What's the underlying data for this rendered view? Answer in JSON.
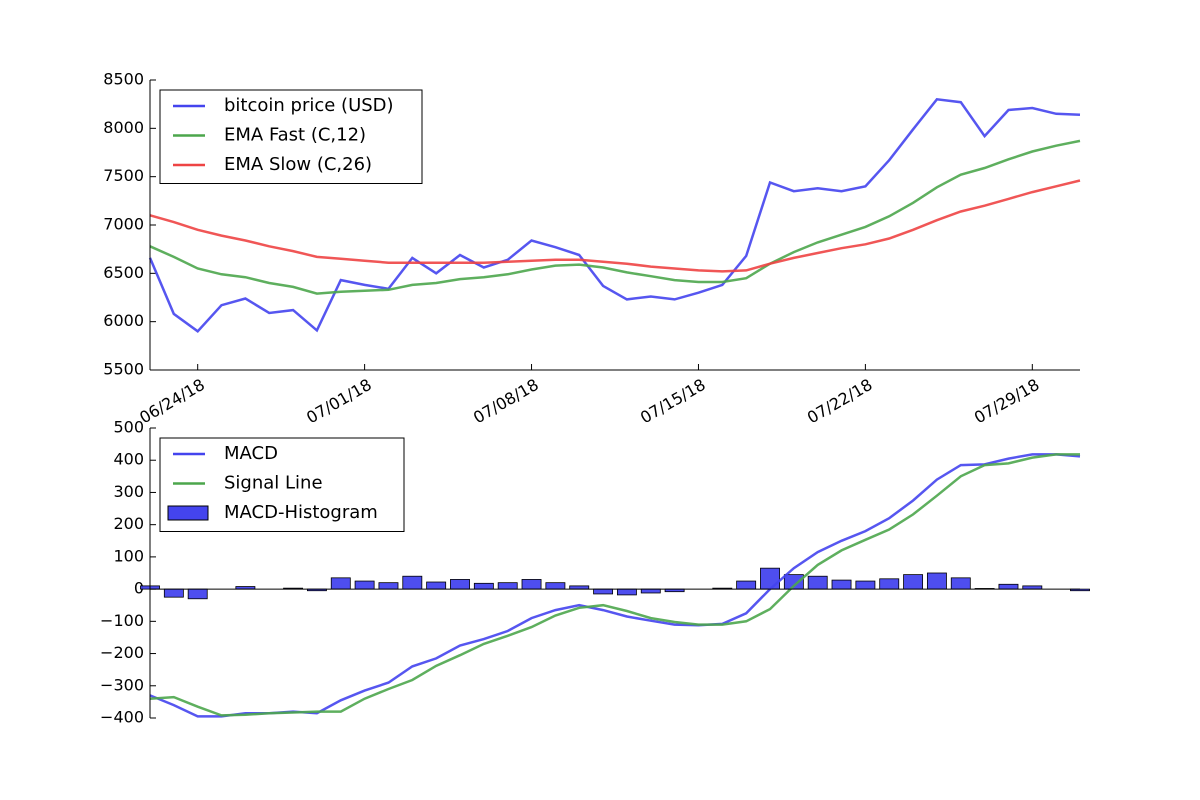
{
  "chart_data": [
    {
      "type": "line",
      "x": [
        "06/22/18",
        "06/23/18",
        "06/24/18",
        "06/25/18",
        "06/26/18",
        "06/27/18",
        "06/28/18",
        "06/29/18",
        "06/30/18",
        "07/01/18",
        "07/02/18",
        "07/03/18",
        "07/04/18",
        "07/05/18",
        "07/06/18",
        "07/07/18",
        "07/08/18",
        "07/09/18",
        "07/10/18",
        "07/11/18",
        "07/12/18",
        "07/13/18",
        "07/14/18",
        "07/15/18",
        "07/16/18",
        "07/17/18",
        "07/18/18",
        "07/19/18",
        "07/20/18",
        "07/21/18",
        "07/22/18",
        "07/23/18",
        "07/24/18",
        "07/25/18",
        "07/26/18",
        "07/27/18",
        "07/28/18",
        "07/29/18",
        "07/30/18",
        "07/31/18"
      ],
      "xlim": [
        "06/22/18",
        "07/31/18"
      ],
      "xticks": [
        "06/24/18",
        "07/01/18",
        "07/08/18",
        "07/15/18",
        "07/22/18",
        "07/29/18"
      ],
      "ylim": [
        5500,
        8500
      ],
      "yticks": [
        5500,
        6000,
        6500,
        7000,
        7500,
        8000,
        8500
      ],
      "legend": "upper left",
      "series": [
        {
          "name": "bitcoin price (USD)",
          "color": "#4444ee",
          "values": [
            6660,
            6080,
            5900,
            6170,
            6240,
            6090,
            6120,
            5910,
            6430,
            6380,
            6340,
            6660,
            6500,
            6690,
            6560,
            6640,
            6840,
            6770,
            6690,
            6370,
            6230,
            6260,
            6230,
            6300,
            6380,
            6680,
            7440,
            7350,
            7380,
            7350,
            7400,
            7670,
            7990,
            8300,
            8270,
            7920,
            8190,
            8210,
            8150,
            8140
          ]
        },
        {
          "name": "EMA Fast (C,12)",
          "color": "#4ca64c",
          "values": [
            6780,
            6670,
            6550,
            6490,
            6460,
            6400,
            6360,
            6290,
            6310,
            6320,
            6330,
            6380,
            6400,
            6440,
            6460,
            6490,
            6540,
            6580,
            6590,
            6560,
            6510,
            6470,
            6430,
            6410,
            6410,
            6450,
            6600,
            6720,
            6820,
            6900,
            6980,
            7090,
            7230,
            7390,
            7520,
            7590,
            7680,
            7760,
            7820,
            7870
          ]
        },
        {
          "name": "EMA Slow (C,26)",
          "color": "#ee4444",
          "values": [
            7100,
            7030,
            6950,
            6890,
            6840,
            6780,
            6730,
            6670,
            6650,
            6630,
            6610,
            6610,
            6610,
            6610,
            6610,
            6620,
            6630,
            6640,
            6640,
            6620,
            6600,
            6570,
            6550,
            6530,
            6520,
            6530,
            6600,
            6660,
            6710,
            6760,
            6800,
            6860,
            6950,
            7050,
            7140,
            7200,
            7270,
            7340,
            7400,
            7460
          ]
        }
      ]
    },
    {
      "type": "line",
      "x": [
        "06/22/18",
        "06/23/18",
        "06/24/18",
        "06/25/18",
        "06/26/18",
        "06/27/18",
        "06/28/18",
        "06/29/18",
        "06/30/18",
        "07/01/18",
        "07/02/18",
        "07/03/18",
        "07/04/18",
        "07/05/18",
        "07/06/18",
        "07/07/18",
        "07/08/18",
        "07/09/18",
        "07/10/18",
        "07/11/18",
        "07/12/18",
        "07/13/18",
        "07/14/18",
        "07/15/18",
        "07/16/18",
        "07/17/18",
        "07/18/18",
        "07/19/18",
        "07/20/18",
        "07/21/18",
        "07/22/18",
        "07/23/18",
        "07/24/18",
        "07/25/18",
        "07/26/18",
        "07/27/18",
        "07/28/18",
        "07/29/18",
        "07/30/18",
        "07/31/18"
      ],
      "xlim": [
        "06/22/18",
        "07/31/18"
      ],
      "ylim": [
        -400,
        500
      ],
      "yticks": [
        {
          "value": -400,
          "label": "−400"
        },
        {
          "value": -300,
          "label": "−300"
        },
        {
          "value": -200,
          "label": "−200"
        },
        {
          "value": -100,
          "label": "−100"
        },
        0,
        100,
        200,
        300,
        400,
        500
      ],
      "legend": "upper left",
      "series": [
        {
          "name": "MACD",
          "type": "line",
          "color": "#4444ee",
          "values": [
            -330,
            -360,
            -395,
            -395,
            -385,
            -385,
            -380,
            -385,
            -345,
            -315,
            -290,
            -240,
            -215,
            -175,
            -155,
            -130,
            -90,
            -65,
            -50,
            -65,
            -85,
            -98,
            -110,
            -112,
            -108,
            -75,
            0,
            65,
            115,
            150,
            180,
            220,
            275,
            340,
            385,
            387,
            405,
            418,
            418,
            412
          ]
        },
        {
          "name": "Signal Line",
          "type": "line",
          "color": "#4ca64c",
          "values": [
            -340,
            -335,
            -365,
            -392,
            -390,
            -385,
            -383,
            -380,
            -380,
            -340,
            -310,
            -282,
            -238,
            -205,
            -170,
            -145,
            -118,
            -82,
            -58,
            -50,
            -68,
            -90,
            -102,
            -110,
            -110,
            -100,
            -62,
            10,
            75,
            120,
            153,
            185,
            232,
            290,
            350,
            385,
            390,
            408,
            418,
            418
          ]
        },
        {
          "name": "MACD-Histogram",
          "type": "bar",
          "color": "#4444ee",
          "values": [
            10,
            -25,
            -30,
            0,
            8,
            0,
            3,
            -5,
            35,
            25,
            20,
            40,
            22,
            30,
            18,
            20,
            30,
            20,
            10,
            -15,
            -18,
            -12,
            -8,
            0,
            3,
            25,
            65,
            45,
            40,
            28,
            25,
            32,
            45,
            50,
            35,
            2,
            15,
            10,
            0,
            -5
          ]
        }
      ]
    }
  ]
}
